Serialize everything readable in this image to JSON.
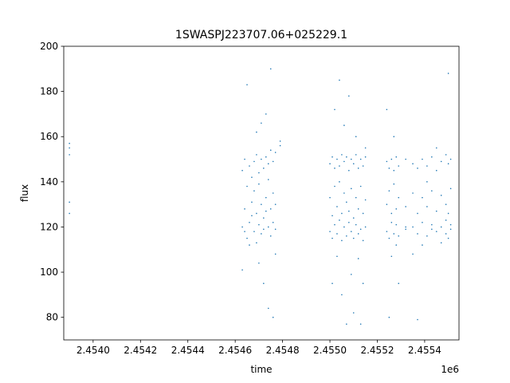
{
  "chart_data": {
    "type": "scatter",
    "title": "1SWASPJ223707.06+025229.1",
    "xlabel": "time",
    "ylabel": "flux",
    "x_offset_label": "1e6",
    "color": "#1f77b4",
    "xlim": [
      2.453876,
      2.455545
    ],
    "ylim": [
      70,
      200
    ],
    "xticks": [
      {
        "value": 2.454,
        "label": "2.4540"
      },
      2.4542,
      2.4544,
      2.4546,
      2.4548,
      {
        "value": 2.455,
        "label": "2.4550"
      },
      2.4552,
      2.4554
    ],
    "yticks": [
      80,
      100,
      120,
      140,
      160,
      180,
      200
    ],
    "x": [
      2.4539,
      2.4539,
      2.4539,
      2.4539,
      2.4539,
      2.45463,
      2.45463,
      2.45463,
      2.45464,
      2.45464,
      2.45464,
      2.45465,
      2.45465,
      2.45465,
      2.45466,
      2.45466,
      2.45466,
      2.45467,
      2.45467,
      2.45467,
      2.45468,
      2.45468,
      2.45468,
      2.45469,
      2.45469,
      2.45469,
      2.45469,
      2.4547,
      2.4547,
      2.4547,
      2.4547,
      2.45471,
      2.45471,
      2.45471,
      2.45471,
      2.45472,
      2.45472,
      2.45472,
      2.45472,
      2.45473,
      2.45473,
      2.45473,
      2.45473,
      2.45474,
      2.45474,
      2.45474,
      2.45474,
      2.45475,
      2.45475,
      2.45475,
      2.45475,
      2.45476,
      2.45476,
      2.45476,
      2.45476,
      2.45477,
      2.45477,
      2.45477,
      2.45477,
      2.45479,
      2.45479,
      2.455,
      2.455,
      2.455,
      2.45501,
      2.45501,
      2.45501,
      2.45501,
      2.45502,
      2.45502,
      2.45502,
      2.45502,
      2.45503,
      2.45503,
      2.45503,
      2.45503,
      2.45504,
      2.45504,
      2.45504,
      2.45504,
      2.45505,
      2.45505,
      2.45505,
      2.45505,
      2.45506,
      2.45506,
      2.45506,
      2.45506,
      2.45507,
      2.45507,
      2.45507,
      2.45507,
      2.45508,
      2.45508,
      2.45508,
      2.45508,
      2.45509,
      2.45509,
      2.45509,
      2.45509,
      2.4551,
      2.4551,
      2.4551,
      2.4551,
      2.45511,
      2.45511,
      2.45511,
      2.45511,
      2.45512,
      2.45512,
      2.45512,
      2.45512,
      2.45513,
      2.45513,
      2.45513,
      2.45513,
      2.45514,
      2.45514,
      2.45514,
      2.45514,
      2.45515,
      2.45515,
      2.45515,
      2.45515,
      2.45524,
      2.45524,
      2.45524,
      2.45524,
      2.45525,
      2.45525,
      2.45525,
      2.45525,
      2.45526,
      2.45526,
      2.45526,
      2.45526,
      2.45527,
      2.45527,
      2.45527,
      2.45527,
      2.45528,
      2.45528,
      2.45528,
      2.45528,
      2.45529,
      2.45529,
      2.45529,
      2.45529,
      2.45532,
      2.45532,
      2.45532,
      2.45532,
      2.45535,
      2.45535,
      2.45535,
      2.45535,
      2.45537,
      2.45537,
      2.45537,
      2.45537,
      2.45539,
      2.45539,
      2.45539,
      2.45539,
      2.45541,
      2.45541,
      2.45541,
      2.45541,
      2.45543,
      2.45543,
      2.45543,
      2.45543,
      2.45545,
      2.45545,
      2.45545,
      2.45545,
      2.45547,
      2.45547,
      2.45547,
      2.45547,
      2.45549,
      2.45549,
      2.45549,
      2.45549,
      2.4555,
      2.4555,
      2.4555,
      2.4555,
      2.45551,
      2.45551,
      2.45551,
      2.45551
    ],
    "values": [
      126,
      131,
      152,
      155,
      157,
      120,
      145,
      101,
      128,
      150,
      118,
      115,
      138,
      183,
      122,
      147,
      112,
      131,
      142,
      125,
      118,
      149,
      136,
      126,
      152,
      113,
      162,
      121,
      144,
      139,
      104,
      117,
      150,
      130,
      166,
      124,
      146,
      119,
      95,
      133,
      151,
      127,
      170,
      120,
      148,
      141,
      84,
      116,
      154,
      128,
      190,
      122,
      149,
      135,
      80,
      119,
      153,
      130,
      108,
      156,
      158,
      118,
      148,
      133,
      115,
      151,
      125,
      95,
      121,
      146,
      138,
      172,
      117,
      150,
      129,
      107,
      123,
      147,
      140,
      185,
      114,
      152,
      126,
      90,
      120,
      149,
      135,
      165,
      116,
      151,
      131,
      77,
      122,
      145,
      127,
      178,
      118,
      150,
      137,
      99,
      115,
      148,
      124,
      82,
      121,
      152,
      133,
      160,
      117,
      146,
      128,
      106,
      119,
      150,
      138,
      77,
      114,
      147,
      126,
      95,
      120,
      151,
      132,
      155,
      118,
      149,
      130,
      172,
      115,
      146,
      136,
      80,
      122,
      150,
      126,
      107,
      117,
      145,
      139,
      160,
      121,
      151,
      128,
      112,
      116,
      147,
      133,
      95,
      119,
      150,
      129,
      120,
      120,
      148,
      135,
      108,
      117,
      146,
      126,
      79,
      122,
      150,
      133,
      112,
      116,
      147,
      129,
      140,
      121,
      151,
      136,
      119,
      118,
      145,
      127,
      155,
      120,
      149,
      134,
      113,
      117,
      152,
      130,
      123,
      115,
      148,
      126,
      188,
      119,
      150,
      137,
      121
    ]
  }
}
